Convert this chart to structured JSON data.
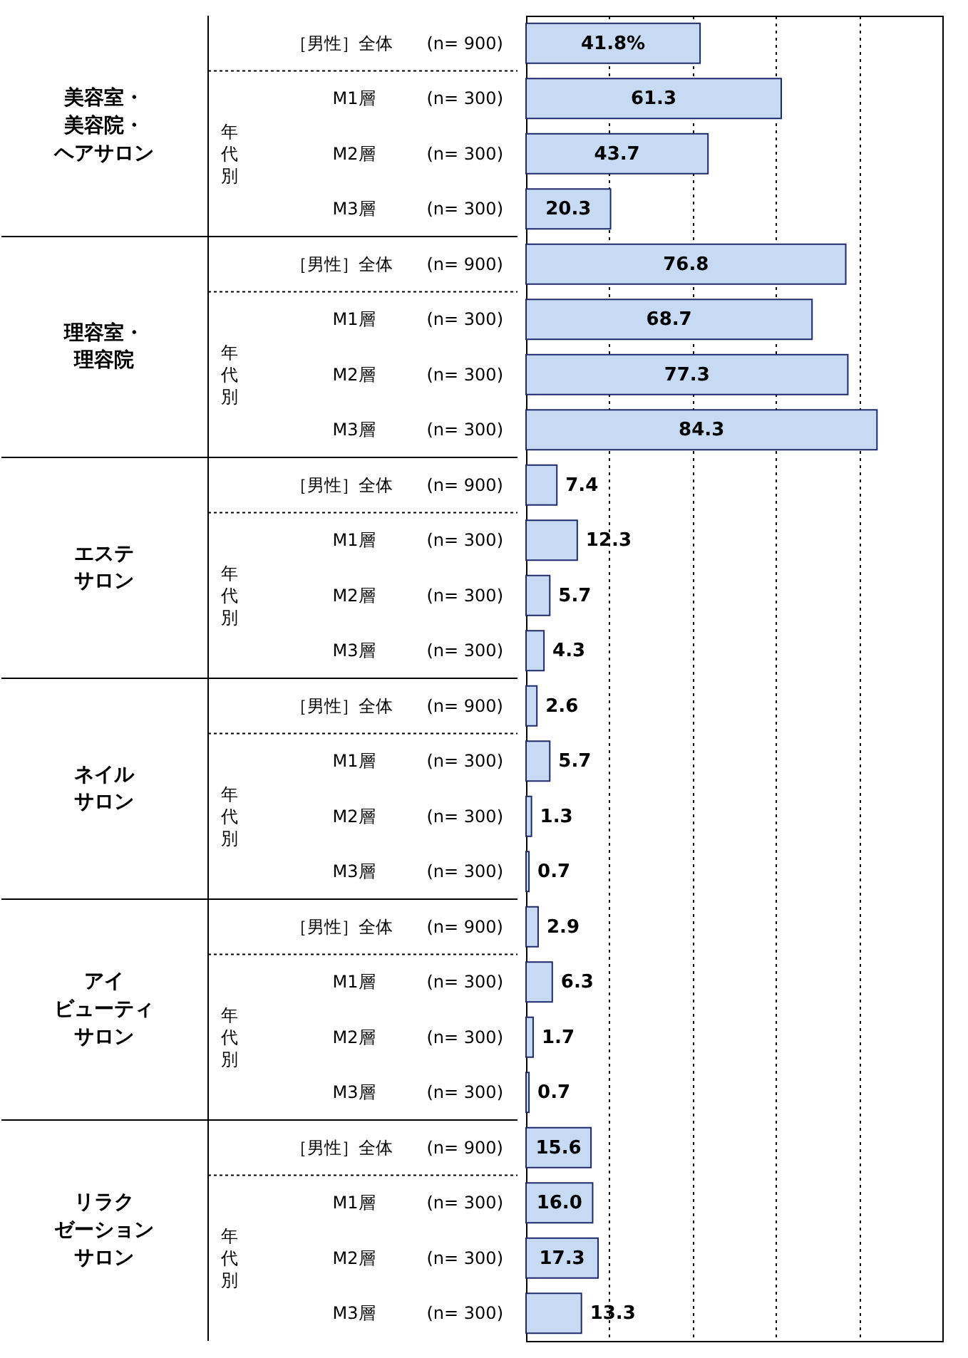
{
  "chart_data": {
    "type": "bar",
    "orientation": "horizontal",
    "categories": [
      "［男性］全体　　(n= 900)",
      "M1層　　　(n= 300)",
      "M2層　　　(n= 300)",
      "M3層　　　(n= 300)",
      "［男性］全体　　(n= 900)",
      "M1層　　　(n= 300)",
      "M2層　　　(n= 300)",
      "M3層　　　(n= 300)",
      "［男性］全体　　(n= 900)",
      "M1層　　　(n= 300)",
      "M2層　　　(n= 300)",
      "M3層　　　(n= 300)",
      "［男性］全体　　(n= 900)",
      "M1層　　　(n= 300)",
      "M2層　　　(n= 300)",
      "M3層　　　(n= 300)",
      "［男性］全体　　(n= 900)",
      "M1層　　　(n= 300)",
      "M2層　　　(n= 300)",
      "M3層　　　(n= 300)",
      "［男性］全体　　(n= 900)",
      "M1層　　　(n= 300)",
      "M2層　　　(n= 300)",
      "M3層　　　(n= 300)"
    ],
    "values": [
      41.8,
      61.3,
      43.7,
      20.3,
      76.8,
      68.7,
      77.3,
      84.3,
      7.4,
      12.3,
      5.7,
      4.3,
      2.6,
      5.7,
      1.3,
      0.7,
      2.9,
      6.3,
      1.7,
      0.7,
      15.6,
      16.0,
      17.3,
      13.3
    ],
    "value_labels": [
      "41.8%",
      "61.3",
      "43.7",
      "20.3",
      "76.8",
      "68.7",
      "77.3",
      "84.3",
      "7.4",
      "12.3",
      "5.7",
      "4.3",
      "2.6",
      "5.7",
      "1.3",
      "0.7",
      "2.9",
      "6.3",
      "1.7",
      "0.7",
      "15.6",
      "16.0",
      "17.3",
      "13.3"
    ],
    "color": "#c6daf4",
    "xlim": [
      0,
      100
    ],
    "xticks": [
      {
        "value": 20,
        "label": null
      },
      {
        "value": 40,
        "label": null
      },
      {
        "value": 60,
        "label": null
      },
      {
        "value": 80,
        "label": null
      }
    ],
    "grid": "x",
    "tick_labels": "y",
    "annotations": [
      "美容室・",
      "美容院・",
      "ヘアサロン",
      "年",
      "代",
      "別",
      "理容室・",
      "理容院",
      "年",
      "代",
      "別",
      "エステ",
      "サロン",
      "年",
      "代",
      "別",
      "ネイル",
      "サロン",
      "年",
      "代",
      "別",
      "アイ",
      "ビューティ",
      "サロン",
      "年",
      "代",
      "別",
      "リラク",
      "ゼーション",
      "サロン",
      "年",
      "代",
      "別"
    ]
  }
}
